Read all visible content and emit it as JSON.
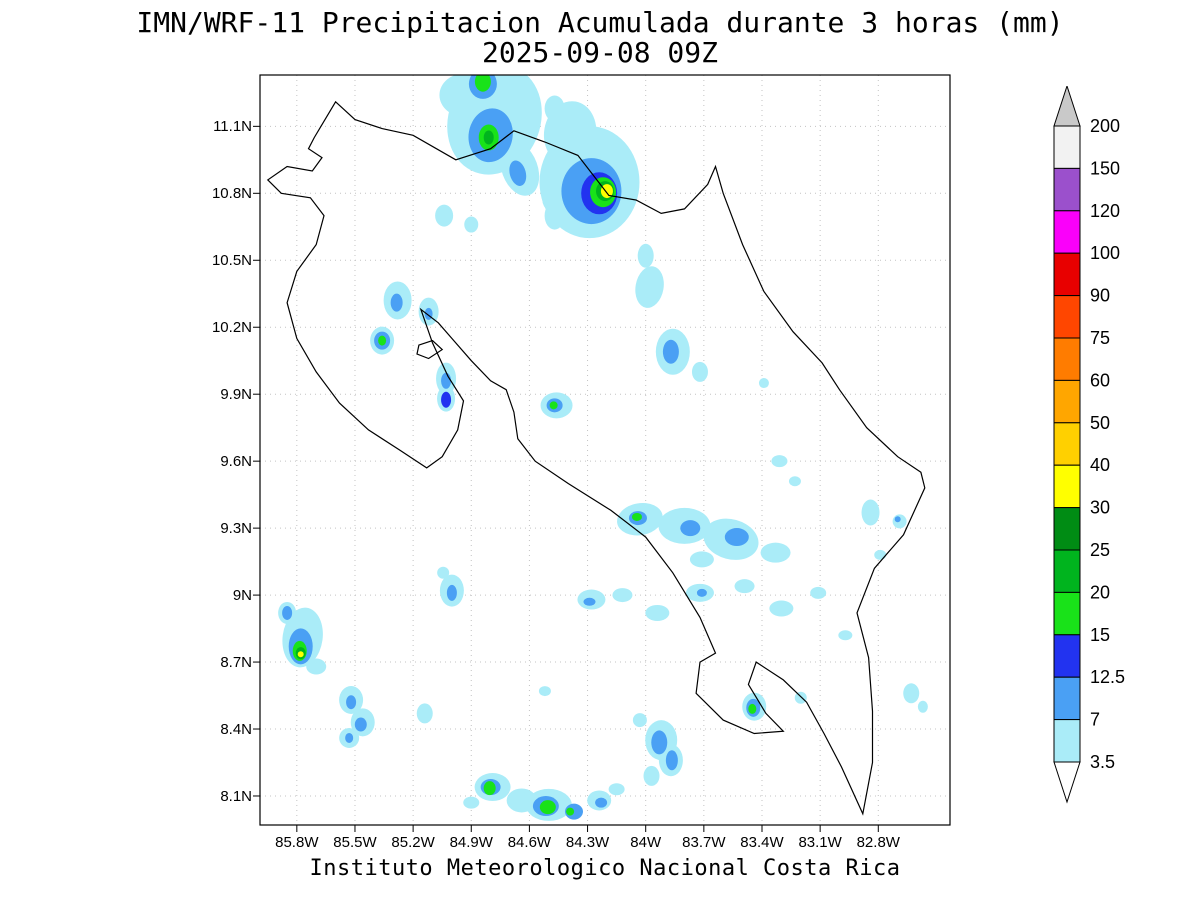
{
  "chart_data": {
    "type": "heatmap",
    "title": "IMN/WRF-11 Precipitacion Acumulada durante 3 horas (mm)",
    "subtitle": "2025-09-08 09Z",
    "footer": "Instituto Meteorologico Nacional Costa Rica",
    "units": "mm",
    "lon_left": 85.99,
    "lon_right": 82.43,
    "lat_top": 11.33,
    "lat_bottom": 7.97,
    "grid": "dotted",
    "x_ticks": [
      {
        "label": "85.8W",
        "lon": 85.8
      },
      {
        "label": "85.5W",
        "lon": 85.5
      },
      {
        "label": "85.2W",
        "lon": 85.2
      },
      {
        "label": "84.9W",
        "lon": 84.9
      },
      {
        "label": "84.6W",
        "lon": 84.6
      },
      {
        "label": "84.3W",
        "lon": 84.3
      },
      {
        "label": "84W",
        "lon": 84.0
      },
      {
        "label": "83.7W",
        "lon": 83.7
      },
      {
        "label": "83.4W",
        "lon": 83.4
      },
      {
        "label": "83.1W",
        "lon": 83.1
      },
      {
        "label": "82.8W",
        "lon": 82.8
      }
    ],
    "y_ticks": [
      {
        "label": "11.1N",
        "lat": 11.1
      },
      {
        "label": "10.8N",
        "lat": 10.8
      },
      {
        "label": "10.5N",
        "lat": 10.5
      },
      {
        "label": "10.2N",
        "lat": 10.2
      },
      {
        "label": "9.9N",
        "lat": 9.9
      },
      {
        "label": "9.6N",
        "lat": 9.6
      },
      {
        "label": "9.3N",
        "lat": 9.3
      },
      {
        "label": "9N",
        "lat": 9.0
      },
      {
        "label": "8.7N",
        "lat": 8.7
      },
      {
        "label": "8.4N",
        "lat": 8.4
      },
      {
        "label": "8.1N",
        "lat": 8.1
      }
    ],
    "colorbar": {
      "levels_bottom_to_top": [
        3.5,
        7,
        12.5,
        15,
        20,
        25,
        30,
        40,
        50,
        60,
        75,
        90,
        100,
        120,
        150,
        200
      ],
      "colors_bottom_to_top": [
        "#aaecf8",
        "#4aa0f4",
        "#2233f0",
        "#19e219",
        "#00b41e",
        "#008c14",
        "#ffff00",
        "#ffd000",
        "#ffa600",
        "#ff7c00",
        "#ff4600",
        "#e80000",
        "#fa00fa",
        "#9b50cc",
        "#f2f2f2"
      ],
      "arrow_top_color": "#c9c9c9",
      "arrow_bottom_color": "#ffffff"
    },
    "coastline": [
      [
        85.71,
        11.05
      ],
      [
        85.6,
        11.21
      ],
      [
        85.5,
        11.13
      ],
      [
        85.36,
        11.09
      ],
      [
        85.2,
        11.06
      ],
      [
        84.98,
        10.95
      ],
      [
        84.8,
        11.0
      ],
      [
        84.68,
        11.08
      ],
      [
        84.52,
        11.03
      ],
      [
        84.35,
        10.97
      ],
      [
        84.19,
        10.79
      ],
      [
        84.05,
        10.77
      ],
      [
        83.92,
        10.71
      ],
      [
        83.8,
        10.73
      ],
      [
        83.68,
        10.84
      ],
      [
        83.64,
        10.92
      ],
      [
        83.6,
        10.8
      ],
      [
        83.5,
        10.57
      ],
      [
        83.39,
        10.36
      ],
      [
        83.24,
        10.18
      ],
      [
        83.09,
        10.04
      ],
      [
        83.0,
        9.92
      ],
      [
        82.86,
        9.75
      ],
      [
        82.7,
        9.62
      ],
      [
        82.58,
        9.55
      ],
      [
        82.56,
        9.48
      ],
      [
        82.67,
        9.27
      ],
      [
        82.82,
        9.12
      ],
      [
        82.91,
        8.92
      ],
      [
        82.85,
        8.72
      ],
      [
        82.83,
        8.48
      ],
      [
        82.83,
        8.25
      ],
      [
        82.88,
        8.02
      ],
      [
        82.99,
        8.23
      ],
      [
        83.08,
        8.38
      ],
      [
        83.17,
        8.52
      ],
      [
        83.29,
        8.62
      ],
      [
        83.43,
        8.7
      ],
      [
        83.47,
        8.6
      ],
      [
        83.38,
        8.47
      ],
      [
        83.29,
        8.39
      ],
      [
        83.44,
        8.38
      ],
      [
        83.6,
        8.44
      ],
      [
        83.74,
        8.56
      ],
      [
        83.72,
        8.7
      ],
      [
        83.64,
        8.74
      ],
      [
        83.72,
        8.9
      ],
      [
        83.86,
        9.1
      ],
      [
        84.0,
        9.26
      ],
      [
        84.18,
        9.38
      ],
      [
        84.4,
        9.5
      ],
      [
        84.57,
        9.6
      ],
      [
        84.66,
        9.7
      ],
      [
        84.68,
        9.82
      ],
      [
        84.72,
        9.92
      ],
      [
        84.8,
        9.96
      ],
      [
        84.9,
        10.05
      ],
      [
        84.99,
        10.14
      ],
      [
        85.07,
        10.22
      ],
      [
        85.16,
        10.28
      ],
      [
        85.1,
        10.13
      ],
      [
        85.02,
        9.98
      ],
      [
        84.94,
        9.87
      ],
      [
        84.97,
        9.74
      ],
      [
        85.05,
        9.62
      ],
      [
        85.13,
        9.57
      ],
      [
        85.27,
        9.65
      ],
      [
        85.43,
        9.74
      ],
      [
        85.58,
        9.86
      ],
      [
        85.7,
        10.0
      ],
      [
        85.8,
        10.15
      ],
      [
        85.85,
        10.31
      ],
      [
        85.8,
        10.45
      ],
      [
        85.7,
        10.57
      ],
      [
        85.66,
        10.7
      ],
      [
        85.73,
        10.78
      ],
      [
        85.88,
        10.8
      ],
      [
        85.95,
        10.86
      ],
      [
        85.85,
        10.92
      ],
      [
        85.72,
        10.9
      ],
      [
        85.67,
        10.96
      ],
      [
        85.74,
        11.0
      ]
    ],
    "islands": [
      [
        [
          85.17,
          10.12
        ],
        [
          85.1,
          10.14
        ],
        [
          85.05,
          10.1
        ],
        [
          85.12,
          10.06
        ],
        [
          85.18,
          10.08
        ]
      ]
    ],
    "cells": [
      [
        84.78,
        11.13,
        46,
        56,
        20,
        1
      ],
      [
        84.93,
        11.24,
        26,
        22,
        0,
        1
      ],
      [
        84.65,
        10.91,
        18,
        28,
        -20,
        1
      ],
      [
        84.47,
        11.18,
        10,
        13,
        0,
        1
      ],
      [
        84.84,
        11.29,
        14,
        15,
        0,
        2
      ],
      [
        84.8,
        11.06,
        22,
        27,
        10,
        2
      ],
      [
        84.66,
        10.89,
        8,
        13,
        -15,
        2
      ],
      [
        84.84,
        11.3,
        8,
        10,
        0,
        4
      ],
      [
        84.81,
        11.05,
        10,
        13,
        0,
        4
      ],
      [
        84.81,
        11.05,
        5,
        7,
        0,
        5
      ],
      [
        84.29,
        10.85,
        50,
        56,
        0,
        1
      ],
      [
        84.39,
        11.07,
        26,
        32,
        10,
        1
      ],
      [
        84.42,
        10.77,
        22,
        16,
        0,
        1
      ],
      [
        84.28,
        10.81,
        30,
        33,
        0,
        2
      ],
      [
        84.24,
        10.8,
        18,
        21,
        0,
        3
      ],
      [
        84.22,
        10.805,
        13,
        15,
        0,
        4
      ],
      [
        84.21,
        10.81,
        9,
        10,
        0,
        5
      ],
      [
        84.2,
        10.81,
        6,
        7,
        0,
        7
      ],
      [
        84.47,
        10.7,
        10,
        14,
        0,
        1
      ],
      [
        85.04,
        10.7,
        9,
        11,
        0,
        1
      ],
      [
        84.9,
        10.66,
        7,
        8,
        0,
        1
      ],
      [
        85.28,
        10.32,
        14,
        19,
        0,
        1
      ],
      [
        85.285,
        10.31,
        6,
        9,
        0,
        2
      ],
      [
        85.12,
        10.27,
        10,
        14,
        0,
        1
      ],
      [
        85.12,
        10.26,
        4,
        6,
        0,
        2
      ],
      [
        85.36,
        10.14,
        12,
        14,
        0,
        1
      ],
      [
        85.36,
        10.14,
        8,
        9,
        0,
        2
      ],
      [
        85.36,
        10.14,
        4,
        5,
        0,
        4
      ],
      [
        85.03,
        9.97,
        10,
        16,
        0,
        1
      ],
      [
        85.03,
        9.96,
        5,
        8,
        0,
        2
      ],
      [
        85.03,
        9.88,
        9,
        13,
        0,
        1
      ],
      [
        85.03,
        9.875,
        5,
        8,
        0,
        3
      ],
      [
        84.46,
        9.85,
        16,
        13,
        0,
        1
      ],
      [
        84.47,
        9.85,
        8,
        7,
        0,
        2
      ],
      [
        84.475,
        9.85,
        4,
        4,
        0,
        4
      ],
      [
        83.98,
        10.38,
        14,
        21,
        10,
        1
      ],
      [
        84.0,
        10.52,
        8,
        12,
        0,
        1
      ],
      [
        83.86,
        10.09,
        17,
        23,
        0,
        1
      ],
      [
        83.87,
        10.09,
        8,
        12,
        0,
        2
      ],
      [
        83.72,
        10.0,
        8,
        10,
        0,
        1
      ],
      [
        83.39,
        9.95,
        5,
        5,
        0,
        1
      ],
      [
        83.31,
        9.6,
        8,
        6,
        0,
        1
      ],
      [
        83.23,
        9.51,
        6,
        5,
        0,
        1
      ],
      [
        84.03,
        9.34,
        23,
        16,
        -10,
        1
      ],
      [
        84.04,
        9.345,
        9,
        7,
        0,
        2
      ],
      [
        84.045,
        9.35,
        5,
        4,
        0,
        4
      ],
      [
        83.8,
        9.31,
        26,
        18,
        0,
        1
      ],
      [
        83.77,
        9.3,
        10,
        8,
        0,
        2
      ],
      [
        83.56,
        9.25,
        28,
        20,
        15,
        1
      ],
      [
        83.53,
        9.26,
        12,
        9,
        0,
        2
      ],
      [
        83.33,
        9.19,
        15,
        10,
        0,
        1
      ],
      [
        83.71,
        9.16,
        12,
        8,
        0,
        1
      ],
      [
        82.84,
        9.37,
        9,
        13,
        0,
        1
      ],
      [
        82.69,
        9.33,
        7,
        7,
        0,
        1
      ],
      [
        82.7,
        9.34,
        3,
        3,
        0,
        2
      ],
      [
        82.79,
        9.18,
        6,
        5,
        0,
        1
      ],
      [
        84.28,
        8.98,
        14,
        10,
        0,
        1
      ],
      [
        84.29,
        8.97,
        6,
        4,
        0,
        2
      ],
      [
        84.12,
        9.0,
        10,
        7,
        0,
        1
      ],
      [
        83.94,
        8.92,
        12,
        8,
        0,
        1
      ],
      [
        83.72,
        9.01,
        14,
        9,
        0,
        1
      ],
      [
        83.71,
        9.01,
        5,
        4,
        0,
        2
      ],
      [
        83.49,
        9.04,
        10,
        7,
        0,
        1
      ],
      [
        83.3,
        8.94,
        12,
        8,
        0,
        1
      ],
      [
        83.11,
        9.01,
        8,
        6,
        0,
        1
      ],
      [
        82.97,
        8.82,
        7,
        5,
        0,
        1
      ],
      [
        85.77,
        8.81,
        20,
        30,
        8,
        1
      ],
      [
        85.78,
        8.77,
        12,
        18,
        0,
        2
      ],
      [
        85.785,
        8.75,
        7,
        10,
        0,
        4
      ],
      [
        85.78,
        8.74,
        5,
        6,
        0,
        5
      ],
      [
        85.78,
        8.735,
        3,
        3,
        0,
        7
      ],
      [
        85.85,
        8.92,
        9,
        11,
        0,
        1
      ],
      [
        85.85,
        8.92,
        5,
        7,
        0,
        2
      ],
      [
        85.7,
        8.68,
        10,
        8,
        0,
        1
      ],
      [
        85.0,
        9.02,
        12,
        16,
        0,
        1
      ],
      [
        85.0,
        9.01,
        5,
        8,
        0,
        2
      ],
      [
        85.045,
        9.1,
        6,
        6,
        0,
        1
      ],
      [
        85.52,
        8.53,
        12,
        14,
        0,
        1
      ],
      [
        85.52,
        8.52,
        5,
        7,
        0,
        2
      ],
      [
        85.46,
        8.43,
        12,
        14,
        0,
        1
      ],
      [
        85.47,
        8.42,
        6,
        7,
        0,
        2
      ],
      [
        85.53,
        8.36,
        10,
        10,
        0,
        1
      ],
      [
        85.53,
        8.36,
        4,
        5,
        0,
        2
      ],
      [
        85.14,
        8.47,
        8,
        10,
        0,
        1
      ],
      [
        84.52,
        8.57,
        6,
        5,
        0,
        1
      ],
      [
        83.92,
        8.35,
        16,
        20,
        0,
        1
      ],
      [
        83.93,
        8.34,
        8,
        12,
        0,
        2
      ],
      [
        83.87,
        8.26,
        12,
        16,
        0,
        1
      ],
      [
        83.865,
        8.26,
        6,
        10,
        0,
        2
      ],
      [
        83.97,
        8.19,
        8,
        10,
        0,
        1
      ],
      [
        84.03,
        8.44,
        7,
        7,
        0,
        1
      ],
      [
        83.44,
        8.5,
        12,
        14,
        0,
        1
      ],
      [
        83.445,
        8.495,
        7,
        9,
        0,
        2
      ],
      [
        83.45,
        8.49,
        4,
        5,
        0,
        4
      ],
      [
        83.2,
        8.54,
        6,
        6,
        0,
        1
      ],
      [
        82.63,
        8.56,
        8,
        10,
        0,
        1
      ],
      [
        82.57,
        8.5,
        5,
        6,
        0,
        1
      ],
      [
        84.79,
        8.14,
        18,
        14,
        0,
        1
      ],
      [
        84.8,
        8.14,
        10,
        8,
        0,
        2
      ],
      [
        84.805,
        8.135,
        6,
        7,
        0,
        4
      ],
      [
        84.64,
        8.08,
        15,
        12,
        0,
        1
      ],
      [
        84.5,
        8.06,
        23,
        16,
        0,
        1
      ],
      [
        84.515,
        8.055,
        13,
        10,
        0,
        2
      ],
      [
        84.505,
        8.05,
        8,
        7,
        0,
        4
      ],
      [
        84.37,
        8.03,
        9,
        8,
        0,
        2
      ],
      [
        84.39,
        8.03,
        4,
        4,
        0,
        4
      ],
      [
        84.24,
        8.08,
        12,
        10,
        0,
        1
      ],
      [
        84.23,
        8.07,
        6,
        5,
        0,
        2
      ],
      [
        84.15,
        8.13,
        8,
        6,
        0,
        1
      ],
      [
        84.9,
        8.07,
        8,
        6,
        0,
        1
      ]
    ]
  }
}
